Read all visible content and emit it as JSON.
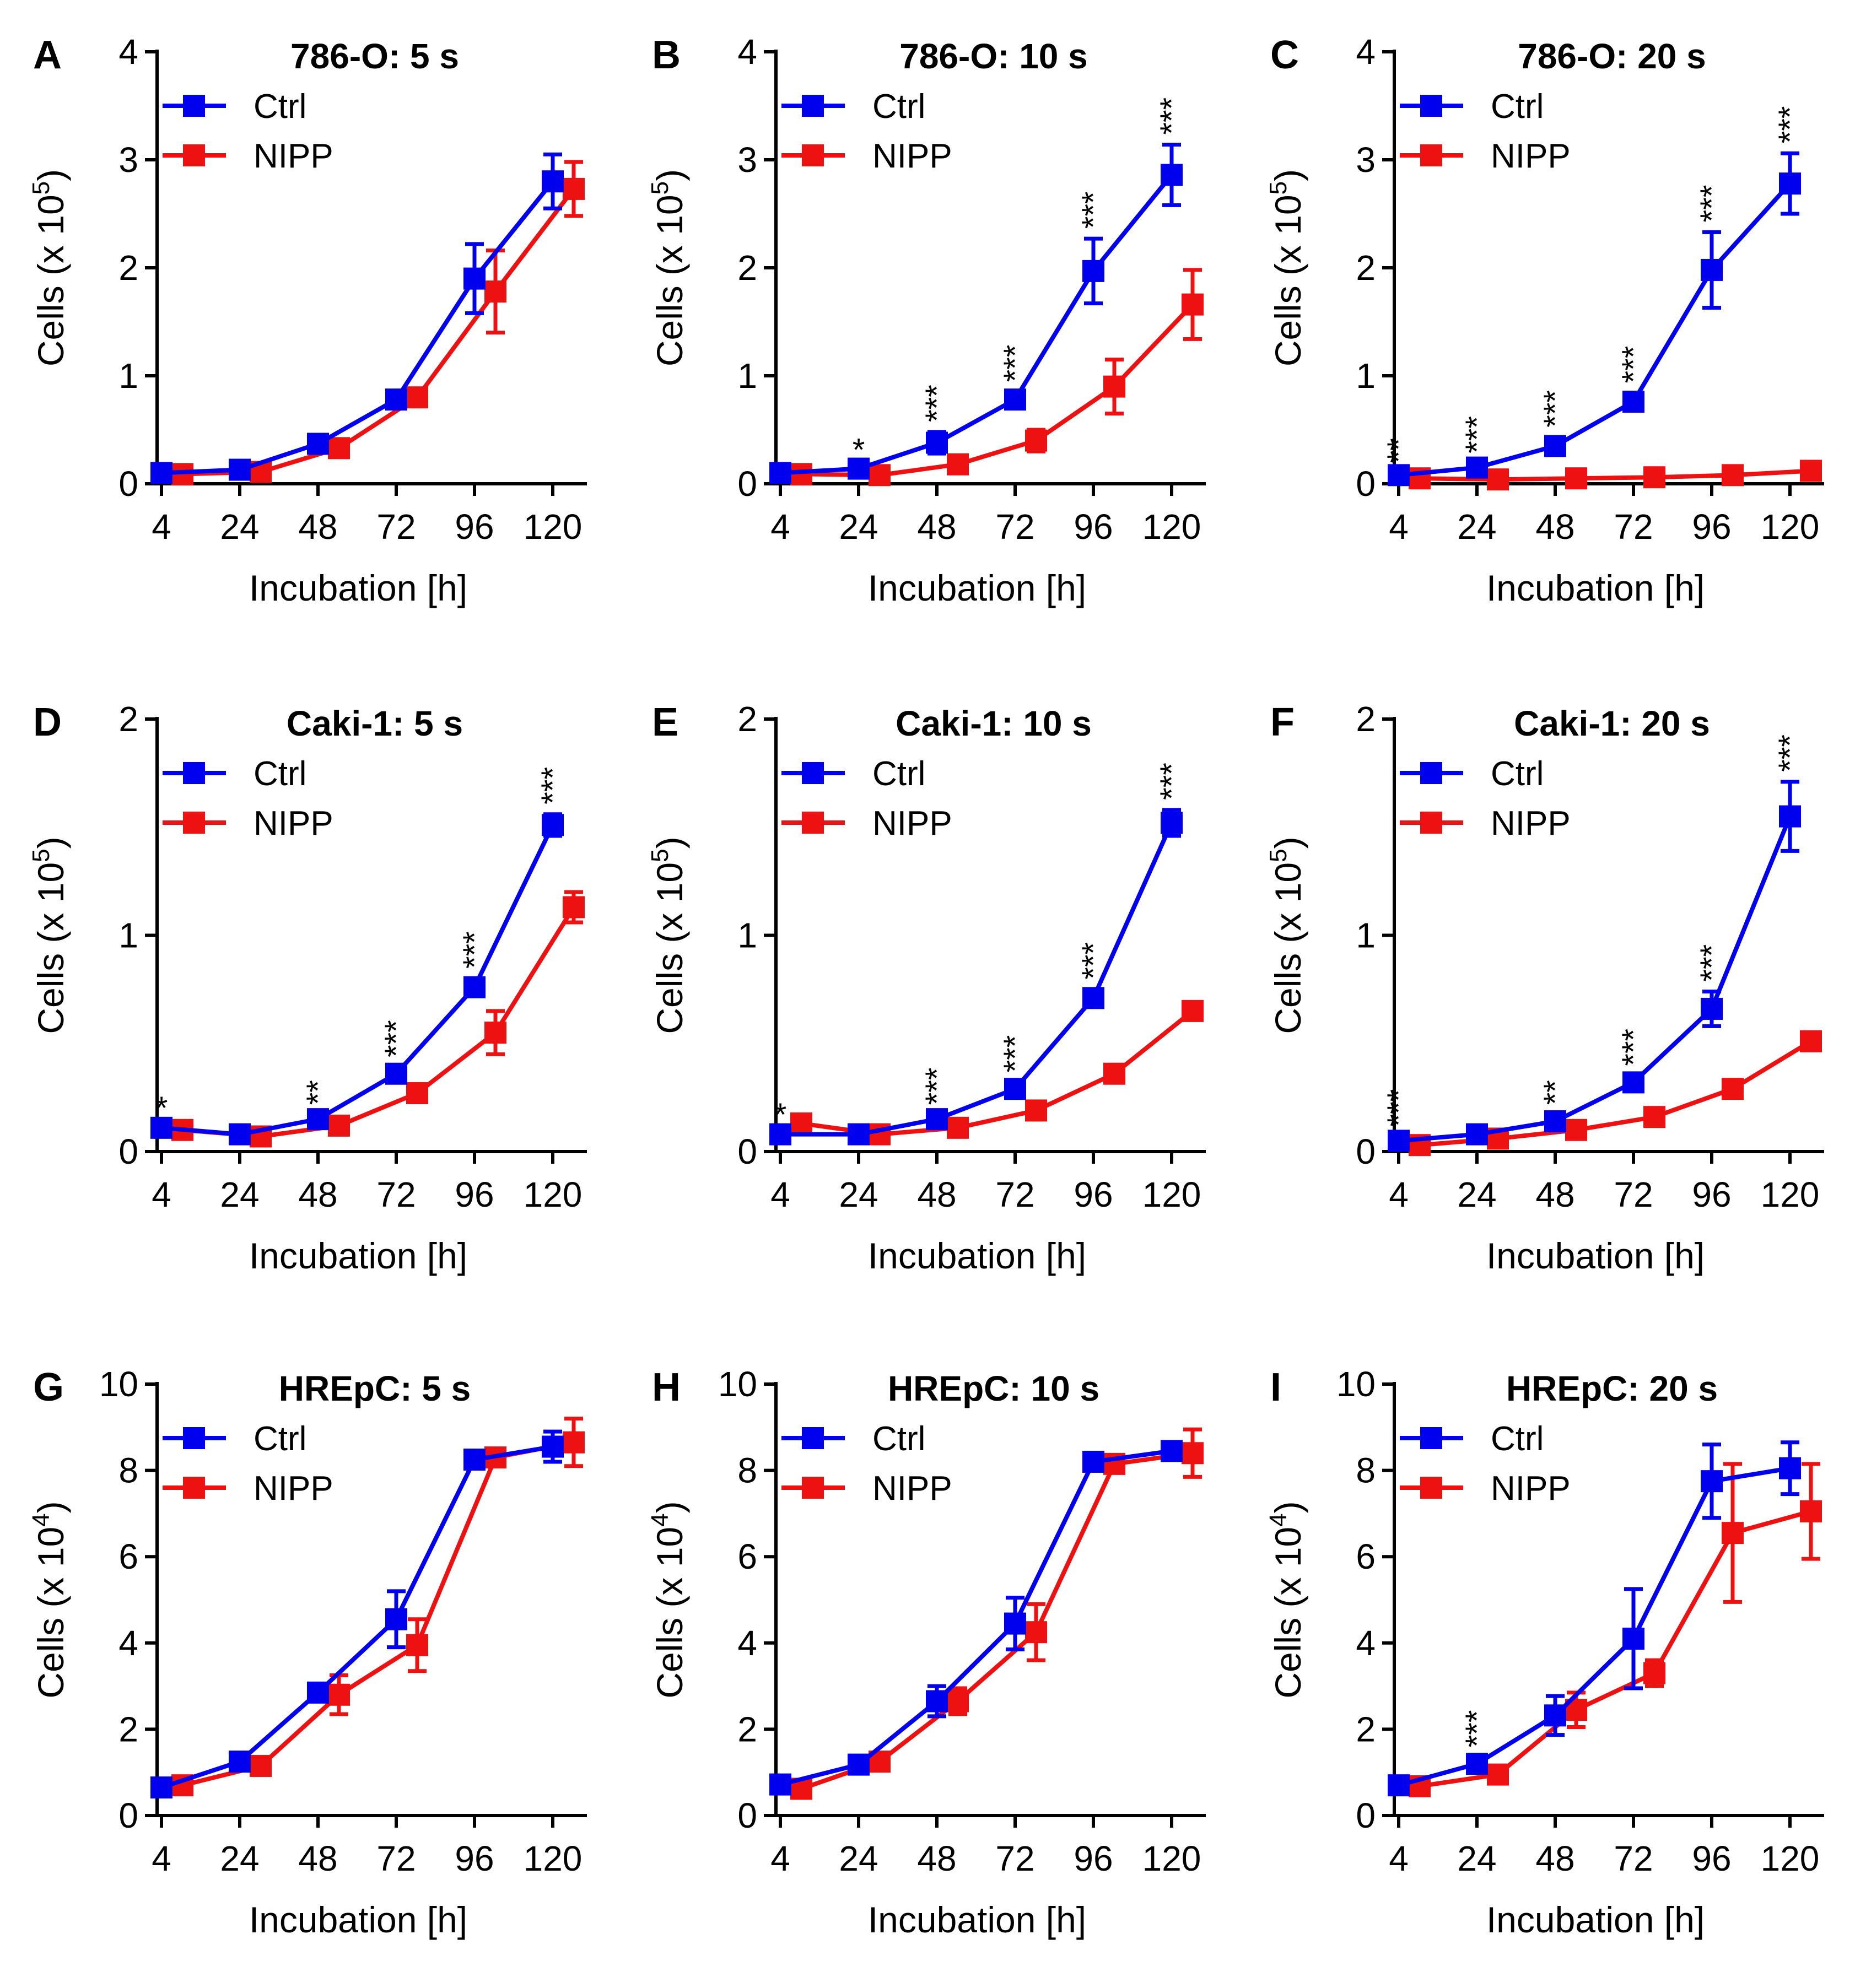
{
  "colors": {
    "ctrl": "#0000ee",
    "nipp": "#ee1111",
    "axis": "#000000"
  },
  "xlabel": "Incubation [h]",
  "x_ticks": [
    "4",
    "24",
    "48",
    "72",
    "96",
    "120"
  ],
  "legend": {
    "ctrl": "Ctrl",
    "nipp": "NIPP"
  },
  "chart_data": [
    {
      "panel": "A",
      "type": "line",
      "title": "786-O: 5 s",
      "ylabel_base": "Cells (x 10",
      "ylabel_exp": "5",
      "ylabel_tail": ")",
      "ylim": [
        0,
        4
      ],
      "yticks": [
        0,
        1,
        2,
        3,
        4
      ],
      "ytick_labels": [
        "0",
        "1",
        "2",
        "3",
        "4"
      ],
      "series": [
        {
          "name": "Ctrl",
          "x": [
            4,
            24,
            48,
            72,
            96,
            120
          ],
          "y": [
            0.1,
            0.13,
            0.37,
            0.78,
            1.9,
            2.8
          ],
          "err": [
            0.03,
            0.03,
            0.07,
            0.07,
            0.32,
            0.25
          ]
        },
        {
          "name": "NIPP",
          "x": [
            4,
            24,
            48,
            72,
            96,
            120
          ],
          "y": [
            0.09,
            0.11,
            0.33,
            0.8,
            1.78,
            2.73
          ],
          "err": [
            0.03,
            0.03,
            0.08,
            0.08,
            0.38,
            0.25
          ]
        }
      ],
      "annotations": []
    },
    {
      "panel": "B",
      "type": "line",
      "title": "786-O: 10 s",
      "ylabel_base": "Cells (x 10",
      "ylabel_exp": "5",
      "ylabel_tail": ")",
      "ylim": [
        0,
        4
      ],
      "yticks": [
        0,
        1,
        2,
        3,
        4
      ],
      "ytick_labels": [
        "0",
        "1",
        "2",
        "3",
        "4"
      ],
      "series": [
        {
          "name": "Ctrl",
          "x": [
            4,
            24,
            48,
            72,
            96,
            120
          ],
          "y": [
            0.1,
            0.14,
            0.38,
            0.78,
            1.97,
            2.86
          ],
          "err": [
            0.03,
            0.03,
            0.1,
            0.07,
            0.3,
            0.28
          ]
        },
        {
          "name": "NIPP",
          "x": [
            4,
            24,
            48,
            72,
            96,
            120
          ],
          "y": [
            0.09,
            0.08,
            0.18,
            0.4,
            0.9,
            1.66
          ],
          "err": [
            0.03,
            0.03,
            0.05,
            0.1,
            0.25,
            0.32
          ]
        }
      ],
      "annotations": [
        {
          "x": 24,
          "text": "*",
          "y": 0.14,
          "err": 0.03,
          "rotate": false
        },
        {
          "x": 48,
          "text": "***",
          "y": 0.38,
          "err": 0.1,
          "rotate": true
        },
        {
          "x": 72,
          "text": "***",
          "y": 0.78,
          "err": 0.07,
          "rotate": true
        },
        {
          "x": 96,
          "text": "***",
          "y": 1.97,
          "err": 0.3,
          "rotate": true
        },
        {
          "x": 120,
          "text": "***",
          "y": 2.86,
          "err": 0.28,
          "rotate": true
        }
      ]
    },
    {
      "panel": "C",
      "type": "line",
      "title": "786-O: 20 s",
      "ylabel_base": "Cells (x 10",
      "ylabel_exp": "5",
      "ylabel_tail": ")",
      "ylim": [
        0,
        4
      ],
      "yticks": [
        0,
        1,
        2,
        3,
        4
      ],
      "ytick_labels": [
        "0",
        "1",
        "2",
        "3",
        "4"
      ],
      "series": [
        {
          "name": "Ctrl",
          "x": [
            4,
            24,
            48,
            72,
            96,
            120
          ],
          "y": [
            0.08,
            0.15,
            0.35,
            0.76,
            1.98,
            2.78
          ],
          "err": [
            0.02,
            0.04,
            0.08,
            0.08,
            0.35,
            0.28
          ]
        },
        {
          "name": "NIPP",
          "x": [
            4,
            24,
            48,
            72,
            96,
            120
          ],
          "y": [
            0.05,
            0.04,
            0.05,
            0.06,
            0.08,
            0.12
          ],
          "err": [
            0.02,
            0.02,
            0.02,
            0.02,
            0.03,
            0.04
          ]
        }
      ],
      "annotations": [
        {
          "x": 4,
          "text": "**",
          "y": 0.08,
          "err": 0.02,
          "rotate": true
        },
        {
          "x": 24,
          "text": "***",
          "y": 0.15,
          "err": 0.04,
          "rotate": true
        },
        {
          "x": 48,
          "text": "***",
          "y": 0.35,
          "err": 0.08,
          "rotate": true
        },
        {
          "x": 72,
          "text": "***",
          "y": 0.76,
          "err": 0.08,
          "rotate": true
        },
        {
          "x": 96,
          "text": "***",
          "y": 1.98,
          "err": 0.35,
          "rotate": true
        },
        {
          "x": 120,
          "text": "***",
          "y": 2.78,
          "err": 0.28,
          "rotate": true
        }
      ]
    },
    {
      "panel": "D",
      "type": "line",
      "title": "Caki-1: 5 s",
      "ylabel_base": "Cells (x 10",
      "ylabel_exp": "5",
      "ylabel_tail": ")",
      "ylim": [
        0,
        2
      ],
      "yticks": [
        0,
        1,
        2
      ],
      "ytick_labels": [
        "0",
        "1",
        "2"
      ],
      "series": [
        {
          "name": "Ctrl",
          "x": [
            4,
            24,
            48,
            72,
            96,
            120
          ],
          "y": [
            0.11,
            0.08,
            0.15,
            0.36,
            0.76,
            1.51
          ],
          "err": [
            0.02,
            0.02,
            0.02,
            0.03,
            0.04,
            0.05
          ]
        },
        {
          "name": "NIPP",
          "x": [
            4,
            24,
            48,
            72,
            96,
            120
          ],
          "y": [
            0.1,
            0.07,
            0.12,
            0.27,
            0.55,
            1.13
          ],
          "err": [
            0.02,
            0.02,
            0.02,
            0.03,
            0.1,
            0.07
          ]
        }
      ],
      "annotations": [
        {
          "x": 4,
          "text": "*",
          "y": 0.11,
          "err": 0.02,
          "rotate": false
        },
        {
          "x": 48,
          "text": "**",
          "y": 0.15,
          "err": 0.02,
          "rotate": true
        },
        {
          "x": 72,
          "text": "***",
          "y": 0.36,
          "err": 0.03,
          "rotate": true
        },
        {
          "x": 96,
          "text": "***",
          "y": 0.76,
          "err": 0.04,
          "rotate": true
        },
        {
          "x": 120,
          "text": "***",
          "y": 1.51,
          "err": 0.05,
          "rotate": true
        }
      ]
    },
    {
      "panel": "E",
      "type": "line",
      "title": "Caki-1: 10 s",
      "ylabel_base": "Cells (x 10",
      "ylabel_exp": "5",
      "ylabel_tail": ")",
      "ylim": [
        0,
        2
      ],
      "yticks": [
        0,
        1,
        2
      ],
      "ytick_labels": [
        "0",
        "1",
        "2"
      ],
      "series": [
        {
          "name": "Ctrl",
          "x": [
            4,
            24,
            48,
            72,
            96,
            120
          ],
          "y": [
            0.08,
            0.08,
            0.15,
            0.29,
            0.71,
            1.52
          ],
          "err": [
            0.02,
            0.02,
            0.02,
            0.03,
            0.04,
            0.06
          ]
        },
        {
          "name": "NIPP",
          "x": [
            4,
            24,
            48,
            72,
            96,
            120
          ],
          "y": [
            0.13,
            0.08,
            0.11,
            0.19,
            0.36,
            0.65
          ],
          "err": [
            0.02,
            0.02,
            0.02,
            0.02,
            0.03,
            0.03
          ]
        }
      ],
      "annotations": [
        {
          "x": 4,
          "text": "*",
          "y": 0.08,
          "err": 0.02,
          "rotate": false
        },
        {
          "x": 48,
          "text": "***",
          "y": 0.15,
          "err": 0.02,
          "rotate": true
        },
        {
          "x": 72,
          "text": "***",
          "y": 0.29,
          "err": 0.03,
          "rotate": true
        },
        {
          "x": 96,
          "text": "***",
          "y": 0.71,
          "err": 0.04,
          "rotate": true
        },
        {
          "x": 120,
          "text": "***",
          "y": 1.52,
          "err": 0.06,
          "rotate": true
        }
      ]
    },
    {
      "panel": "F",
      "type": "line",
      "title": "Caki-1: 20 s",
      "ylabel_base": "Cells (x 10",
      "ylabel_exp": "5",
      "ylabel_tail": ")",
      "ylim": [
        0,
        2
      ],
      "yticks": [
        0,
        1,
        2
      ],
      "ytick_labels": [
        "0",
        "1",
        "2"
      ],
      "series": [
        {
          "name": "Ctrl",
          "x": [
            4,
            24,
            48,
            72,
            96,
            120
          ],
          "y": [
            0.05,
            0.08,
            0.14,
            0.32,
            0.66,
            1.55
          ],
          "err": [
            0.02,
            0.02,
            0.03,
            0.03,
            0.08,
            0.16
          ]
        },
        {
          "name": "NIPP",
          "x": [
            4,
            24,
            48,
            72,
            96,
            120
          ],
          "y": [
            0.03,
            0.06,
            0.1,
            0.16,
            0.29,
            0.51
          ],
          "err": [
            0.02,
            0.02,
            0.02,
            0.02,
            0.03,
            0.04
          ]
        }
      ],
      "annotations": [
        {
          "x": 4,
          "text": "***",
          "y": 0.05,
          "err": 0.02,
          "rotate": true
        },
        {
          "x": 48,
          "text": "**",
          "y": 0.14,
          "err": 0.03,
          "rotate": true
        },
        {
          "x": 72,
          "text": "***",
          "y": 0.32,
          "err": 0.03,
          "rotate": true
        },
        {
          "x": 96,
          "text": "***",
          "y": 0.66,
          "err": 0.08,
          "rotate": true
        },
        {
          "x": 120,
          "text": "***",
          "y": 1.55,
          "err": 0.16,
          "rotate": true
        }
      ]
    },
    {
      "panel": "G",
      "type": "line",
      "title": "HREpC: 5 s",
      "ylabel_base": "Cells (x 10",
      "ylabel_exp": "4",
      "ylabel_tail": ")",
      "ylim": [
        0,
        10
      ],
      "yticks": [
        0,
        2,
        4,
        6,
        8,
        10
      ],
      "ytick_labels": [
        "0",
        "2",
        "4",
        "6",
        "8",
        "10"
      ],
      "series": [
        {
          "name": "Ctrl",
          "x": [
            4,
            24,
            48,
            72,
            96,
            120
          ],
          "y": [
            0.65,
            1.25,
            2.85,
            4.55,
            8.25,
            8.55
          ],
          "err": [
            0.12,
            0.15,
            0.2,
            0.65,
            0.2,
            0.35
          ]
        },
        {
          "name": "NIPP",
          "x": [
            4,
            24,
            48,
            72,
            96,
            120
          ],
          "y": [
            0.7,
            1.15,
            2.8,
            3.95,
            8.3,
            8.65
          ],
          "err": [
            0.12,
            0.15,
            0.45,
            0.6,
            0.2,
            0.55
          ]
        }
      ],
      "annotations": []
    },
    {
      "panel": "H",
      "type": "line",
      "title": "HREpC: 10 s",
      "ylabel_base": "Cells (x 10",
      "ylabel_exp": "4",
      "ylabel_tail": ")",
      "ylim": [
        0,
        10
      ],
      "yticks": [
        0,
        2,
        4,
        6,
        8,
        10
      ],
      "ytick_labels": [
        "0",
        "2",
        "4",
        "6",
        "8",
        "10"
      ],
      "series": [
        {
          "name": "Ctrl",
          "x": [
            4,
            24,
            48,
            72,
            96,
            120
          ],
          "y": [
            0.72,
            1.18,
            2.65,
            4.45,
            8.2,
            8.45
          ],
          "err": [
            0.12,
            0.15,
            0.35,
            0.6,
            0.15,
            0.2
          ]
        },
        {
          "name": "NIPP",
          "x": [
            4,
            24,
            48,
            72,
            96,
            120
          ],
          "y": [
            0.62,
            1.25,
            2.65,
            4.25,
            8.15,
            8.4
          ],
          "err": [
            0.12,
            0.15,
            0.3,
            0.65,
            0.2,
            0.55
          ]
        }
      ],
      "annotations": []
    },
    {
      "panel": "I",
      "type": "line",
      "title": "HREpC: 20 s",
      "ylabel_base": "Cells (x 10",
      "ylabel_exp": "4",
      "ylabel_tail": ")",
      "ylim": [
        0,
        10
      ],
      "yticks": [
        0,
        2,
        4,
        6,
        8,
        10
      ],
      "ytick_labels": [
        "0",
        "2",
        "4",
        "6",
        "8",
        "10"
      ],
      "series": [
        {
          "name": "Ctrl",
          "x": [
            4,
            24,
            48,
            72,
            96,
            120
          ],
          "y": [
            0.7,
            1.2,
            2.32,
            4.1,
            7.75,
            8.05
          ],
          "err": [
            0.12,
            0.15,
            0.45,
            1.15,
            0.85,
            0.6
          ]
        },
        {
          "name": "NIPP",
          "x": [
            4,
            24,
            48,
            72,
            96,
            120
          ],
          "y": [
            0.68,
            0.95,
            2.45,
            3.3,
            6.55,
            7.05
          ],
          "err": [
            0.12,
            0.15,
            0.4,
            0.3,
            1.6,
            1.1
          ]
        }
      ],
      "annotations": [
        {
          "x": 24,
          "text": "***",
          "y": 1.2,
          "err": 0.15,
          "rotate": true
        }
      ]
    }
  ]
}
